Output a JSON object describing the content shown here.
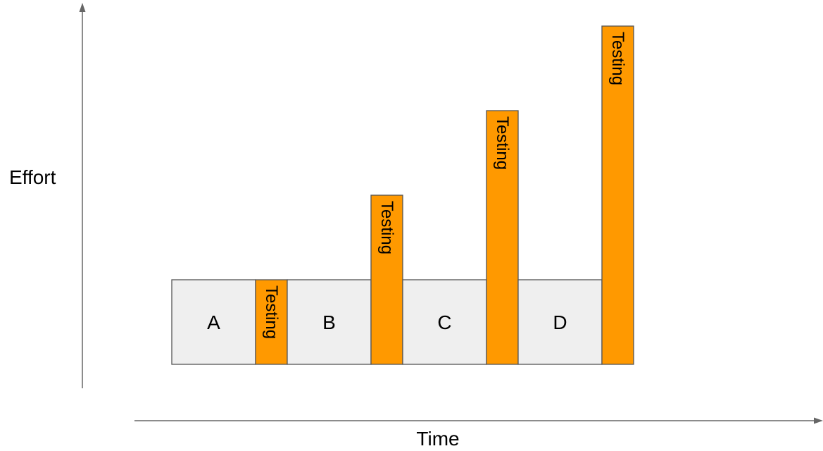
{
  "labels": {
    "y_axis": "Effort",
    "x_axis": "Time"
  },
  "colors": {
    "phase_fill": "#efefef",
    "testing_fill": "#ff9900",
    "outline": "#555555",
    "axis": "#666666"
  },
  "phases": [
    {
      "label": "A",
      "kind": "work"
    },
    {
      "label": "Testing",
      "kind": "testing",
      "effort_level": 1
    },
    {
      "label": "B",
      "kind": "work"
    },
    {
      "label": "Testing",
      "kind": "testing",
      "effort_level": 2
    },
    {
      "label": "C",
      "kind": "work"
    },
    {
      "label": "Testing",
      "kind": "testing",
      "effort_level": 3
    },
    {
      "label": "D",
      "kind": "work"
    },
    {
      "label": "Testing",
      "kind": "testing",
      "effort_level": 4
    }
  ]
}
